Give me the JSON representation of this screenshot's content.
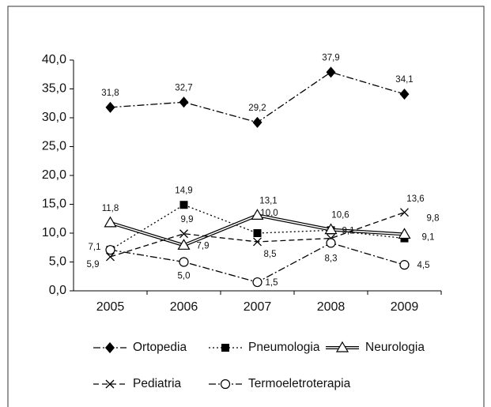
{
  "chart_data": {
    "type": "line",
    "categories": [
      "2005",
      "2006",
      "2007",
      "2008",
      "2009"
    ],
    "series": [
      {
        "name": "Ortopedia",
        "color": "#000000",
        "values": [
          31.8,
          32.7,
          29.2,
          37.9,
          34.1
        ],
        "value_labels": [
          "31,8",
          "32,7",
          "29,2",
          "37,9",
          "34,1"
        ]
      },
      {
        "name": "Pneumologia",
        "color": "#000000",
        "values": [
          7.1,
          14.9,
          10.0,
          10.5,
          9.1
        ],
        "value_labels": [
          "7,1",
          "14,9",
          "10,0",
          null,
          "9,1"
        ]
      },
      {
        "name": "Neurologia",
        "color": "#000000",
        "values": [
          11.8,
          7.9,
          13.1,
          10.6,
          9.8
        ],
        "value_labels": [
          "11,8",
          "7,9",
          "13,1",
          "10,6",
          "9,8"
        ]
      },
      {
        "name": "Pediatria",
        "color": "#000000",
        "values": [
          5.9,
          9.9,
          8.5,
          9.1,
          13.6
        ],
        "value_labels": [
          "5,9",
          "9,9",
          "8,5",
          "9,1",
          "13,6"
        ]
      },
      {
        "name": "Termoeletroterapia",
        "color": "#000000",
        "values": [
          7.1,
          5.0,
          1.5,
          8.3,
          4.5
        ],
        "value_labels": [
          null,
          "5,0",
          "1,5",
          "8,3",
          "4,5"
        ]
      }
    ],
    "ylim": [
      0,
      40
    ],
    "yticks": [
      {
        "value": 0,
        "label": "0,0"
      },
      {
        "value": 5,
        "label": "5,0"
      },
      {
        "value": 10,
        "label": "10,0"
      },
      {
        "value": 15,
        "label": "15,0"
      },
      {
        "value": 20,
        "label": "20,0"
      },
      {
        "value": 25,
        "label": "25,0"
      },
      {
        "value": 30,
        "label": "30,0"
      },
      {
        "value": 35,
        "label": "35,0"
      },
      {
        "value": 40,
        "label": "40,0"
      }
    ],
    "legend": "bottom"
  }
}
